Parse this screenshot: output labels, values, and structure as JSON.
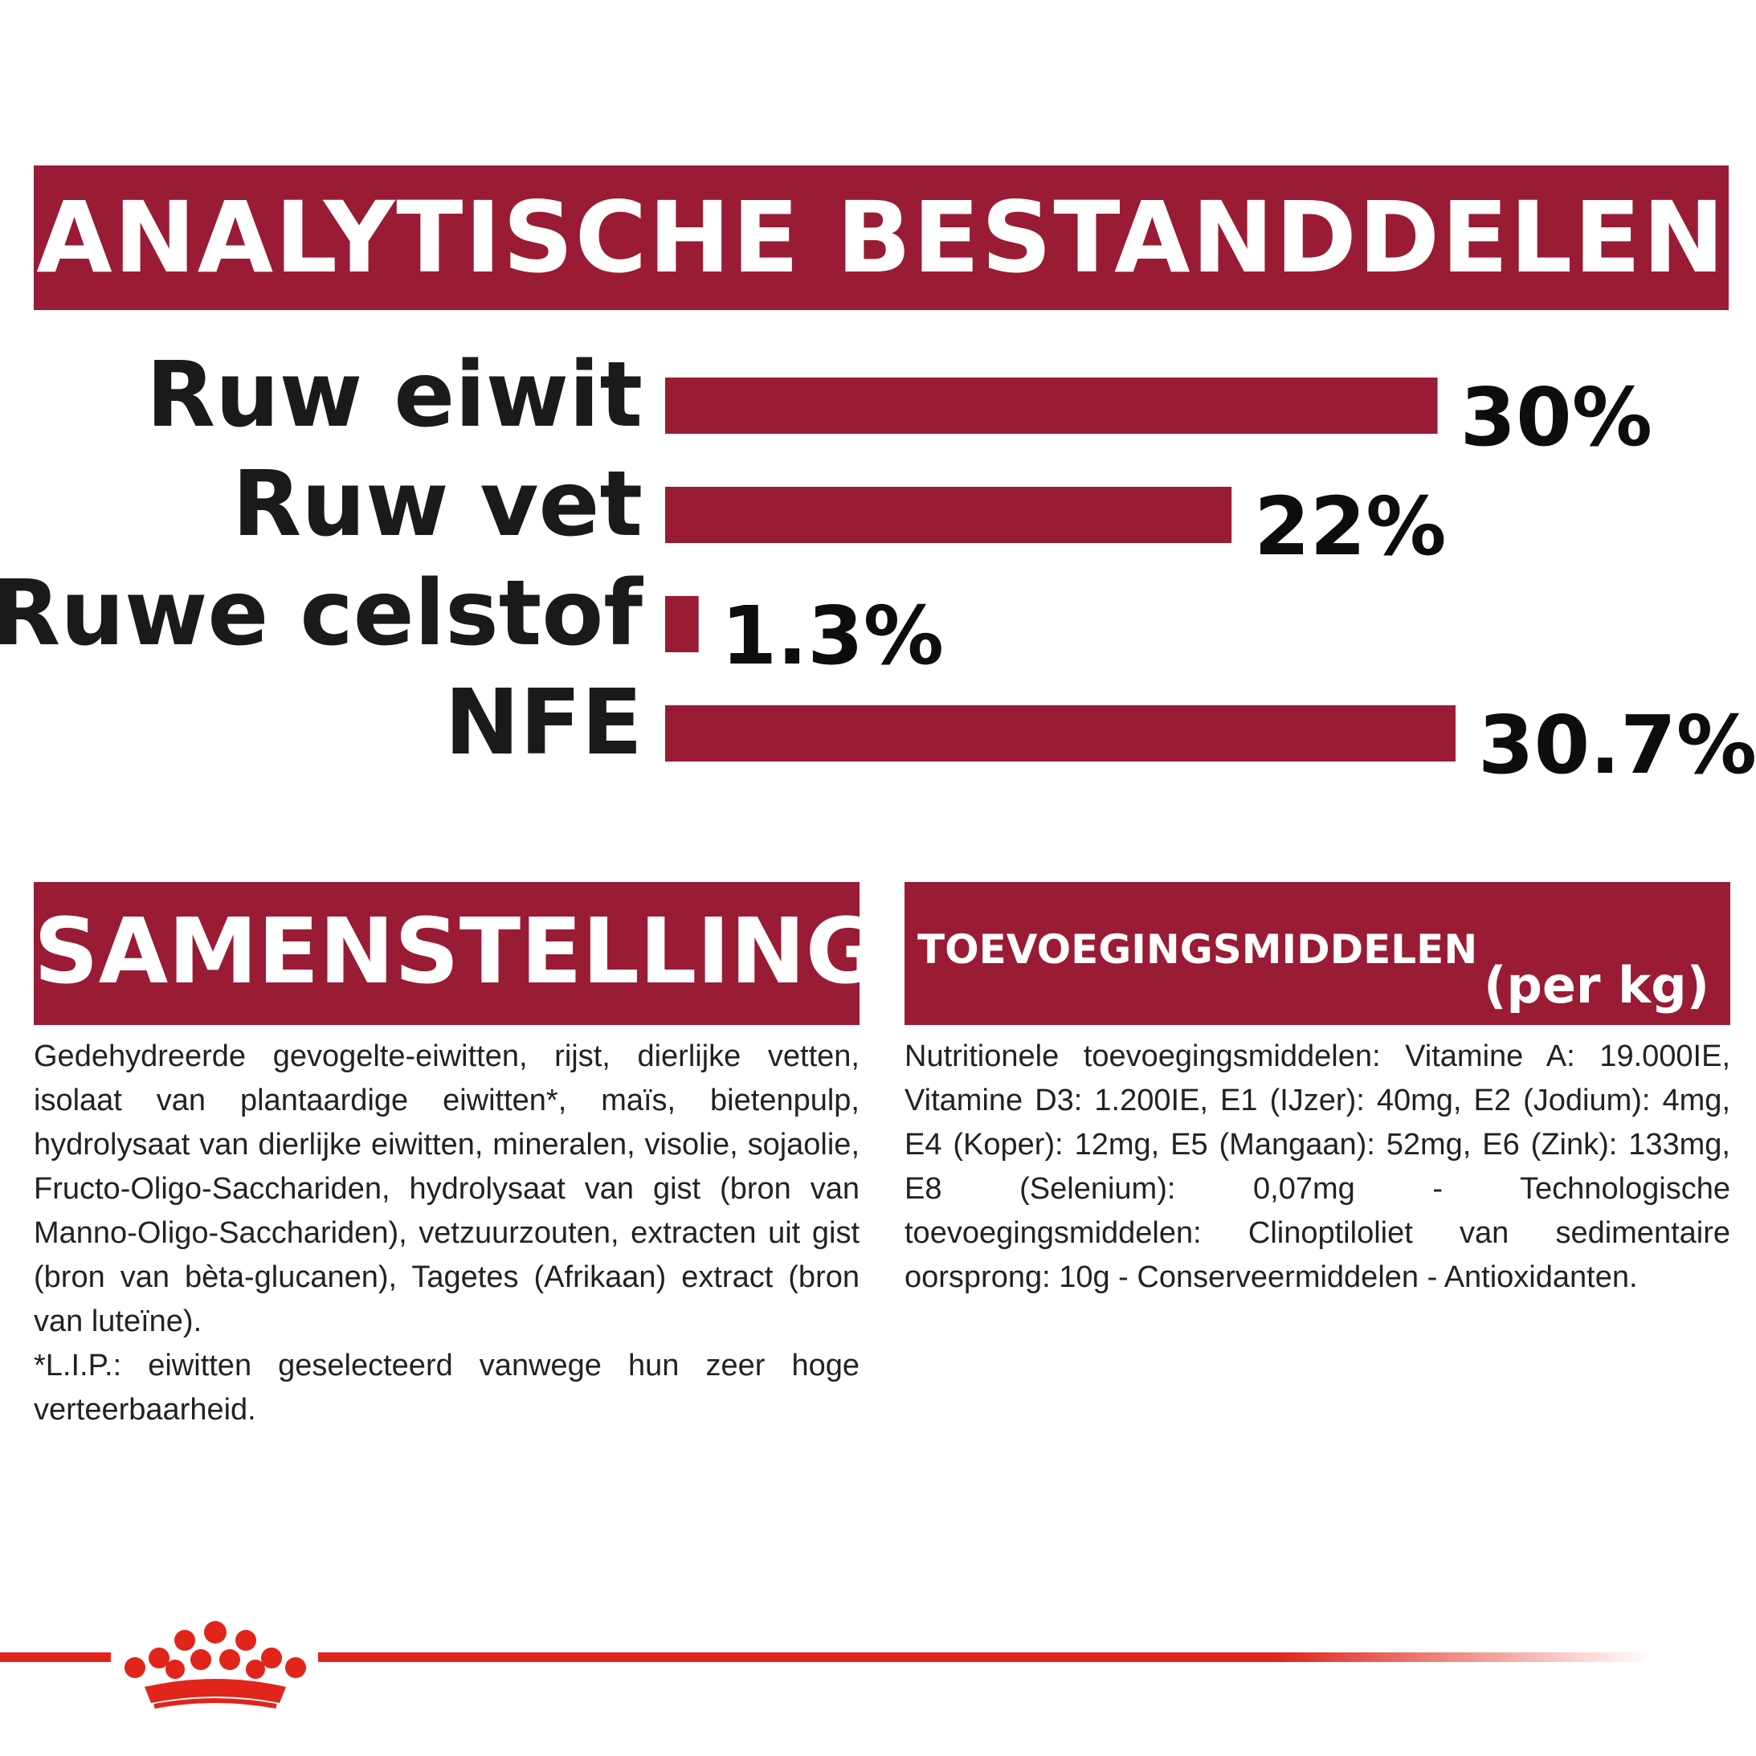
{
  "analytics": {
    "title": "ANALYTISCHE BESTANDDELEN"
  },
  "chart_data": {
    "type": "bar",
    "orientation": "horizontal",
    "title": "ANALYTISCHE BESTANDDELEN",
    "categories": [
      "Ruw eiwit",
      "Ruw vet",
      "Ruwe celstof",
      "NFE"
    ],
    "values": [
      30,
      22,
      1.3,
      30.7
    ],
    "value_labels": [
      "30%",
      "22%",
      "1.3%",
      "30.7%"
    ],
    "unit": "%",
    "xlim": [
      0,
      30.7
    ],
    "grid": false,
    "legend": "none",
    "bar_color": "#9a1b34"
  },
  "composition": {
    "title": "SAMENSTELLING",
    "text": "Gedehydreerde gevogelte-eiwitten, rijst, dierlijke vetten, isolaat van plantaardige eiwitten*, maïs, bietenpulp, hydrolysaat van dierlijke eiwitten, mineralen, visolie, sojaolie, Fructo-Oligo-Sacchariden, hydrolysaat van gist (bron van Manno-Oligo-Sacchariden), vetzuurzouten, extracten uit gist (bron van bèta-glucanen), Tagetes (Afrikaan) extract (bron van luteïne).",
    "footnote": "*L.I.P.: eiwitten geselecteerd vanwege hun zeer hoge verteerbaarheid."
  },
  "additives": {
    "title": "TOEVOEGINGSMIDDELEN",
    "unit": "(per kg)",
    "text": "Nutritionele toevoegingsmiddelen: Vitamine A: 19.000IE, Vitamine D3: 1.200IE, E1 (IJzer): 40mg, E2 (Jodium): 4mg, E4 (Koper): 12mg, E5 (Mangaan): 52mg, E6 (Zink): 133mg, E8 (Selenium): 0,07mg - Technologische toevoegingsmiddelen: Clinoptiloliet van sedimentaire oorsprong: 10g - Conserveermiddelen - Antioxidanten."
  },
  "colors": {
    "brand_red": "#9a1b34",
    "logo_red": "#e1251b",
    "text": "#222222"
  },
  "footer": {
    "logo_icon": "crown-icon"
  }
}
